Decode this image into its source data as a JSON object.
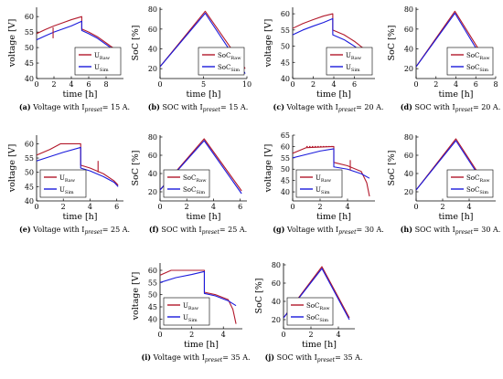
{
  "colors": {
    "raw": "#b2182b",
    "sim": "#1a1adc",
    "axis": "#000000"
  },
  "chart_data": [
    {
      "id": "a",
      "type": "line",
      "kind": "voltage",
      "caption": {
        "label": "(a)",
        "text": "Voltage with I",
        "sub": "preset",
        "tail": "= 15 A."
      },
      "xlabel": "time [h]",
      "ylabel": "voltage [V]",
      "xlim": [
        0,
        10
      ],
      "ylim": [
        40,
        63
      ],
      "xticks": [
        0,
        2,
        4,
        6,
        8
      ],
      "yticks": [
        40,
        45,
        50,
        55,
        60
      ],
      "legend": {
        "position": "bottom-right",
        "entries": [
          {
            "base": "U",
            "sub": "Raw"
          },
          {
            "base": "U",
            "sub": "Sim"
          }
        ]
      },
      "series": [
        {
          "name": "U_Raw",
          "color_key": "raw",
          "points": [
            [
              0,
              54.5
            ],
            [
              1,
              55.8
            ],
            [
              2,
              57
            ],
            [
              3,
              58
            ],
            [
              4,
              59
            ],
            [
              5.2,
              60
            ],
            [
              5.2,
              56
            ],
            [
              6,
              55
            ],
            [
              7,
              53.5
            ],
            [
              8,
              51.5
            ],
            [
              9,
              49.5
            ],
            [
              9.5,
              48
            ]
          ]
        },
        {
          "name": "U_Sim",
          "color_key": "sim",
          "points": [
            [
              0,
              52.5
            ],
            [
              1,
              53.8
            ],
            [
              2,
              55
            ],
            [
              3,
              56
            ],
            [
              4,
              57
            ],
            [
              5.2,
              58.5
            ],
            [
              5.2,
              55.5
            ],
            [
              6,
              54.5
            ],
            [
              7,
              53
            ],
            [
              8,
              51
            ],
            [
              9,
              49
            ],
            [
              9.5,
              47.5
            ]
          ]
        }
      ],
      "marks": [
        {
          "x": 1.9,
          "y": [
            53,
            56.5
          ],
          "color_key": "raw"
        }
      ]
    },
    {
      "id": "b",
      "type": "line",
      "kind": "soc",
      "caption": {
        "label": "(b)",
        "text": "SOC with I",
        "sub": "preset",
        "tail": "= 15 A."
      },
      "xlabel": "time [h]",
      "ylabel": "SoC [%]",
      "xlim": [
        0,
        10
      ],
      "ylim": [
        10,
        82
      ],
      "xticks": [
        0,
        5,
        10
      ],
      "yticks": [
        20,
        40,
        60,
        80
      ],
      "legend": {
        "position": "bottom-right",
        "entries": [
          {
            "base": "SoC",
            "sub": "Raw"
          },
          {
            "base": "SoC",
            "sub": "Sim"
          }
        ]
      },
      "series": [
        {
          "name": "SoC_Raw",
          "color_key": "raw",
          "points": [
            [
              0,
              22
            ],
            [
              5.2,
              78
            ],
            [
              9.8,
              20
            ]
          ]
        },
        {
          "name": "SoC_Sim",
          "color_key": "sim",
          "points": [
            [
              0,
              22
            ],
            [
              5.2,
              76
            ],
            [
              9.8,
              15
            ]
          ]
        }
      ]
    },
    {
      "id": "c",
      "type": "line",
      "kind": "voltage",
      "caption": {
        "label": "(c)",
        "text": "Voltage with I",
        "sub": "preset",
        "tail": "= 20 A."
      },
      "xlabel": "time [h]",
      "ylabel": "voltage [V]",
      "xlim": [
        0,
        8
      ],
      "ylim": [
        40,
        62
      ],
      "xticks": [
        0,
        2,
        4,
        6
      ],
      "yticks": [
        40,
        45,
        50,
        55,
        60
      ],
      "legend": {
        "position": "bottom-right",
        "entries": [
          {
            "base": "U",
            "sub": "Raw"
          },
          {
            "base": "U",
            "sub": "Sim"
          }
        ]
      },
      "series": [
        {
          "name": "U_Raw",
          "color_key": "raw",
          "points": [
            [
              0,
              55.5
            ],
            [
              1,
              57
            ],
            [
              2,
              58.2
            ],
            [
              3,
              59.3
            ],
            [
              3.9,
              60
            ],
            [
              3.9,
              55
            ],
            [
              5,
              53.5
            ],
            [
              6,
              51.5
            ],
            [
              7,
              49
            ],
            [
              7.3,
              48
            ]
          ]
        },
        {
          "name": "U_Sim",
          "color_key": "sim",
          "points": [
            [
              0,
              53.5
            ],
            [
              1,
              55
            ],
            [
              2,
              56.2
            ],
            [
              3,
              57.3
            ],
            [
              3.9,
              58.5
            ],
            [
              3.9,
              53.5
            ],
            [
              5,
              52
            ],
            [
              6,
              50
            ],
            [
              7,
              47.5
            ],
            [
              7.3,
              46.5
            ]
          ]
        }
      ]
    },
    {
      "id": "d",
      "type": "line",
      "kind": "soc",
      "caption": {
        "label": "(d)",
        "text": "SOC with I",
        "sub": "preset",
        "tail": "= 20 A."
      },
      "xlabel": "time [h]",
      "ylabel": "SoC [%]",
      "xlim": [
        0,
        8
      ],
      "ylim": [
        10,
        82
      ],
      "xticks": [
        0,
        2,
        4,
        6,
        8
      ],
      "yticks": [
        20,
        40,
        60,
        80
      ],
      "legend": {
        "position": "bottom-right",
        "entries": [
          {
            "base": "SoC",
            "sub": "Raw"
          },
          {
            "base": "SoC",
            "sub": "Sim"
          }
        ]
      },
      "series": [
        {
          "name": "SoC_Raw",
          "color_key": "raw",
          "points": [
            [
              0,
              22
            ],
            [
              3.9,
              78
            ],
            [
              7.5,
              20
            ]
          ]
        },
        {
          "name": "SoC_Sim",
          "color_key": "sim",
          "points": [
            [
              0,
              22
            ],
            [
              3.9,
              76
            ],
            [
              7.5,
              16
            ]
          ]
        }
      ]
    },
    {
      "id": "e",
      "type": "line",
      "kind": "voltage",
      "caption": {
        "label": "(e)",
        "text": "Voltage with I",
        "sub": "preset",
        "tail": "= 25 A."
      },
      "xlabel": "time [h]",
      "ylabel": "voltage [V]",
      "xlim": [
        0,
        6.5
      ],
      "ylim": [
        40,
        63
      ],
      "xticks": [
        0,
        2,
        4,
        6
      ],
      "yticks": [
        40,
        45,
        50,
        55,
        60
      ],
      "legend": {
        "position": "bottom-left",
        "entries": [
          {
            "base": "U",
            "sub": "Raw"
          },
          {
            "base": "U",
            "sub": "Sim"
          }
        ]
      },
      "series": [
        {
          "name": "U_Raw",
          "color_key": "raw",
          "points": [
            [
              0,
              56
            ],
            [
              1,
              58
            ],
            [
              1.8,
              60
            ],
            [
              3.3,
              60
            ],
            [
              3.3,
              52.5
            ],
            [
              4,
              51.5
            ],
            [
              5,
              49.5
            ],
            [
              5.8,
              47
            ],
            [
              6.1,
              45.5
            ]
          ]
        },
        {
          "name": "U_Sim",
          "color_key": "sim",
          "points": [
            [
              0,
              54
            ],
            [
              1,
              55.5
            ],
            [
              2,
              57
            ],
            [
              3.3,
              58.7
            ],
            [
              3.3,
              51.5
            ],
            [
              4,
              50.5
            ],
            [
              5,
              48.5
            ],
            [
              5.8,
              46.5
            ],
            [
              6.1,
              45
            ]
          ]
        }
      ],
      "marks": [
        {
          "x": 4.6,
          "y": [
            50,
            54
          ],
          "color_key": "raw"
        }
      ]
    },
    {
      "id": "f",
      "type": "line",
      "kind": "soc",
      "caption": {
        "label": "(f)",
        "text": "SOC with I",
        "sub": "preset",
        "tail": "= 25 A."
      },
      "xlabel": "time [h]",
      "ylabel": "SoC [%]",
      "xlim": [
        0,
        6.5
      ],
      "ylim": [
        10,
        82
      ],
      "xticks": [
        0,
        2,
        4,
        6
      ],
      "yticks": [
        20,
        40,
        60,
        80
      ],
      "legend": {
        "position": "bottom-left",
        "entries": [
          {
            "base": "SoC",
            "sub": "Raw"
          },
          {
            "base": "SoC",
            "sub": "Sim"
          }
        ]
      },
      "series": [
        {
          "name": "SoC_Raw",
          "color_key": "raw",
          "points": [
            [
              0,
              22
            ],
            [
              3.3,
              78
            ],
            [
              6.1,
              21
            ]
          ]
        },
        {
          "name": "SoC_Sim",
          "color_key": "sim",
          "points": [
            [
              0,
              22
            ],
            [
              3.3,
              76
            ],
            [
              6.1,
              18
            ]
          ]
        }
      ]
    },
    {
      "id": "g",
      "type": "line",
      "kind": "voltage",
      "caption": {
        "label": "(g)",
        "text": "Voltage with I",
        "sub": "preset",
        "tail": "= 30 A."
      },
      "xlabel": "time [h]",
      "ylabel": "voltage [V]",
      "xlim": [
        0,
        6
      ],
      "ylim": [
        36,
        65
      ],
      "xticks": [
        0,
        2,
        4
      ],
      "yticks": [
        40,
        45,
        50,
        55,
        60,
        65
      ],
      "legend": {
        "position": "bottom-left",
        "entries": [
          {
            "base": "U",
            "sub": "Raw"
          },
          {
            "base": "U",
            "sub": "Sim"
          }
        ]
      },
      "series": [
        {
          "name": "U_Raw",
          "color_key": "raw",
          "points": [
            [
              0,
              57
            ],
            [
              1,
              59.5
            ],
            [
              3.0,
              60
            ],
            [
              3.0,
              53
            ],
            [
              4,
              51.5
            ],
            [
              5,
              49
            ],
            [
              5.4,
              44
            ],
            [
              5.6,
              38
            ]
          ]
        },
        {
          "name": "U_Sim",
          "color_key": "sim",
          "points": [
            [
              0,
              55
            ],
            [
              1,
              56.5
            ],
            [
              2,
              58
            ],
            [
              3.0,
              59
            ],
            [
              3.0,
              51
            ],
            [
              4,
              50
            ],
            [
              5,
              48
            ],
            [
              5.6,
              46
            ]
          ]
        }
      ],
      "dashed": [
        {
          "x": [
            1,
            3.0
          ],
          "y": 60,
          "color_key": "raw"
        }
      ],
      "marks": [
        {
          "x": 4.2,
          "y": [
            49.5,
            54
          ],
          "color_key": "raw"
        }
      ]
    },
    {
      "id": "h",
      "type": "line",
      "kind": "soc",
      "caption": {
        "label": "(h)",
        "text": "SOC with I",
        "sub": "preset",
        "tail": "= 30 A."
      },
      "xlabel": "time [h]",
      "ylabel": "SoC [%]",
      "xlim": [
        0,
        6
      ],
      "ylim": [
        10,
        82
      ],
      "xticks": [
        0,
        2,
        4
      ],
      "yticks": [
        20,
        40,
        60,
        80
      ],
      "legend": {
        "position": "bottom-right",
        "entries": [
          {
            "base": "SoC",
            "sub": "Raw"
          },
          {
            "base": "SoC",
            "sub": "Sim"
          }
        ]
      },
      "series": [
        {
          "name": "SoC_Raw",
          "color_key": "raw",
          "points": [
            [
              0,
              22
            ],
            [
              3.0,
              78
            ],
            [
              5.6,
              20
            ]
          ]
        },
        {
          "name": "SoC_Sim",
          "color_key": "sim",
          "points": [
            [
              0,
              22
            ],
            [
              3.0,
              76
            ],
            [
              5.6,
              18
            ]
          ]
        }
      ]
    },
    {
      "id": "i",
      "type": "line",
      "kind": "voltage",
      "caption": {
        "label": "(i)",
        "text": "Voltage with I",
        "sub": "preset",
        "tail": "= 35 A."
      },
      "xlabel": "time [h]",
      "ylabel": "voltage [V]",
      "xlim": [
        0,
        5.2
      ],
      "ylim": [
        36,
        63
      ],
      "xticks": [
        0,
        2,
        4
      ],
      "yticks": [
        40,
        45,
        50,
        55,
        60
      ],
      "legend": {
        "position": "bottom-left",
        "entries": [
          {
            "base": "U",
            "sub": "Raw"
          },
          {
            "base": "U",
            "sub": "Sim"
          }
        ]
      },
      "series": [
        {
          "name": "U_Raw",
          "color_key": "raw",
          "points": [
            [
              0,
              58
            ],
            [
              0.7,
              60
            ],
            [
              2.8,
              60
            ],
            [
              2.8,
              51
            ],
            [
              3.5,
              50
            ],
            [
              4.3,
              48
            ],
            [
              4.6,
              44
            ],
            [
              4.8,
              38
            ]
          ]
        },
        {
          "name": "U_Sim",
          "color_key": "sim",
          "points": [
            [
              0,
              55
            ],
            [
              1,
              57
            ],
            [
              2,
              58.3
            ],
            [
              2.8,
              59.5
            ],
            [
              2.8,
              50.5
            ],
            [
              3.5,
              49.5
            ],
            [
              4.3,
              47.5
            ],
            [
              4.8,
              45.5
            ]
          ]
        }
      ],
      "dashed": [
        {
          "x": [
            0.7,
            2.8
          ],
          "y": 60,
          "color_key": "raw"
        }
      ]
    },
    {
      "id": "j",
      "type": "line",
      "kind": "soc",
      "caption": {
        "label": "(j)",
        "text": "SOC with I",
        "sub": "preset",
        "tail": "= 35 A."
      },
      "xlabel": "time [h]",
      "ylabel": "SoC [%]",
      "xlim": [
        0,
        5.2
      ],
      "ylim": [
        10,
        82
      ],
      "xticks": [
        0,
        2,
        4
      ],
      "yticks": [
        20,
        40,
        60,
        80
      ],
      "legend": {
        "position": "bottom-left",
        "entries": [
          {
            "base": "SoC",
            "sub": "Raw"
          },
          {
            "base": "SoC",
            "sub": "Sim"
          }
        ]
      },
      "series": [
        {
          "name": "SoC_Raw",
          "color_key": "raw",
          "points": [
            [
              0,
              22
            ],
            [
              2.8,
              78
            ],
            [
              4.8,
              22
            ]
          ]
        },
        {
          "name": "SoC_Sim",
          "color_key": "sim",
          "points": [
            [
              0,
              22
            ],
            [
              2.8,
              76
            ],
            [
              4.8,
              20
            ]
          ]
        }
      ]
    }
  ]
}
